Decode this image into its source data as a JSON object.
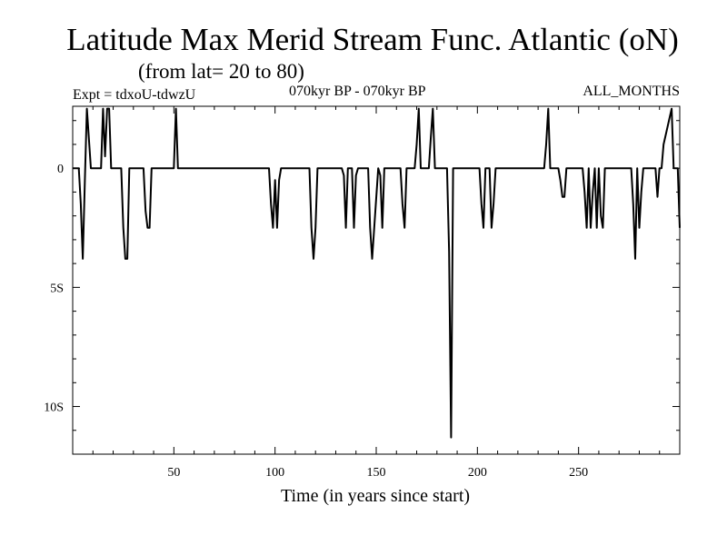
{
  "header": {
    "title": "Latitude Max Merid Stream Func. Atlantic (oN)",
    "subtitle": "(from lat= 20 to 80)",
    "expt": "Expt = tdxoU-tdwzU",
    "period": "070kyr BP - 070kyr BP",
    "months": "ALL_MONTHS"
  },
  "chart_data": {
    "type": "line",
    "title": "Latitude Max Merid Stream Func. Atlantic (oN)",
    "subtitle": "(from lat= 20 to 80)",
    "xlabel": "Time (in years since start)",
    "ylabel": "",
    "xlim": [
      0,
      300
    ],
    "ylim": [
      -12,
      2.6
    ],
    "x_ticks": [
      50,
      100,
      150,
      200,
      250
    ],
    "x_tick_labels": [
      "50",
      "100",
      "150",
      "200",
      "250"
    ],
    "y_ticks": [
      0,
      -5,
      -10
    ],
    "y_tick_labels": [
      "0",
      "5S",
      "10S"
    ],
    "grid": false,
    "series": [
      {
        "x": [
          0,
          3,
          4,
          5,
          6,
          7,
          9,
          10,
          14,
          15,
          16,
          17,
          18,
          19,
          20,
          23,
          24,
          25,
          26,
          27,
          28,
          29,
          31,
          35,
          36,
          37,
          38,
          39,
          40,
          49,
          50,
          51,
          52,
          53,
          97,
          98,
          99,
          100,
          101,
          102,
          103,
          117,
          118,
          119,
          120,
          121,
          133,
          134,
          135,
          136,
          138,
          139,
          140,
          141,
          146,
          147,
          148,
          149,
          151,
          152,
          153,
          154,
          162,
          163,
          164,
          165,
          169,
          170,
          171,
          172,
          176,
          177,
          178,
          179,
          185,
          186,
          187,
          188,
          201,
          202,
          203,
          204,
          206,
          207,
          208,
          209,
          233,
          234,
          235,
          236,
          240,
          241,
          242,
          243,
          244,
          252,
          253,
          254,
          255,
          256,
          257,
          258,
          259,
          260,
          261,
          262,
          263,
          264,
          276,
          277,
          278,
          279,
          280,
          281,
          282,
          283,
          284,
          288,
          289,
          290,
          291,
          292,
          296,
          297,
          298,
          299,
          300
        ],
        "y": [
          0,
          0,
          -1.5,
          -3.8,
          -0.5,
          2.5,
          0,
          0,
          0,
          2.5,
          0.5,
          2.5,
          2.5,
          0,
          0,
          0,
          0,
          -2.5,
          -3.8,
          -3.8,
          0,
          0,
          0,
          0,
          -1.8,
          -2.5,
          -2.5,
          0,
          0,
          0,
          0,
          2.5,
          0,
          0,
          0,
          -1.5,
          -2.5,
          -0.5,
          -2.5,
          -0.5,
          0,
          0,
          -2.5,
          -3.8,
          -2.5,
          0,
          0,
          -0.3,
          -2.5,
          0,
          0,
          -2.5,
          -0.3,
          0,
          0,
          -2.5,
          -3.8,
          -2.5,
          0,
          -0.3,
          -2.5,
          0,
          0,
          -1.5,
          -2.5,
          0,
          0,
          1,
          2.5,
          0,
          0,
          1.3,
          2.5,
          0,
          0,
          -3.5,
          -11.3,
          0,
          0,
          -1.5,
          -2.5,
          0,
          0,
          -2.5,
          -1.5,
          0,
          0,
          1,
          2.5,
          0,
          0,
          -0.5,
          -1.2,
          -1.2,
          0,
          0,
          -1,
          -2.5,
          0,
          -2.5,
          -1,
          0,
          -2.5,
          0,
          -2,
          -2.5,
          0,
          0,
          0,
          -1.5,
          -3.8,
          0,
          -2.5,
          -1,
          0,
          0,
          0,
          0,
          -1.2,
          0,
          0,
          1,
          2.5,
          0,
          0,
          0,
          -2.5
        ]
      }
    ]
  }
}
